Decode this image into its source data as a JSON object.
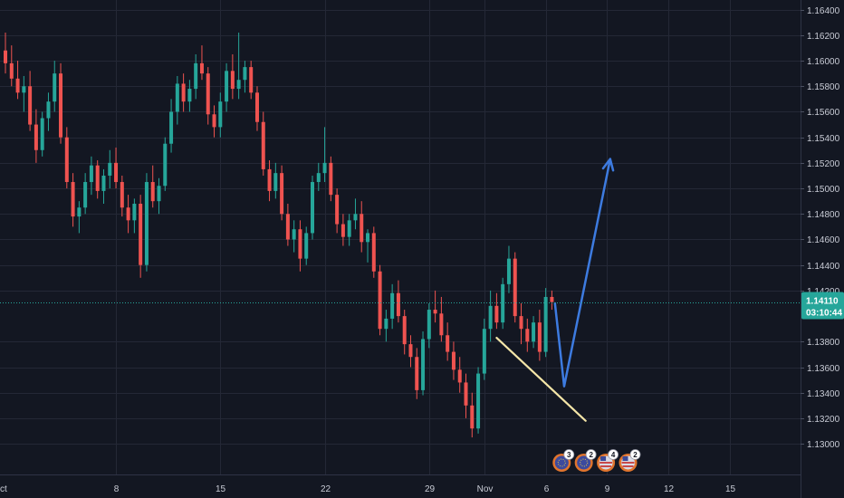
{
  "chart_data": {
    "type": "candlestick",
    "x_axis": {
      "tick_labels": [
        "ct",
        "8",
        "15",
        "22",
        "29",
        "Nov",
        "6",
        "9",
        "12",
        "15"
      ],
      "ticks": [
        {
          "label": "ct",
          "index": 0
        },
        {
          "label": "8",
          "index": 18
        },
        {
          "label": "15",
          "index": 35
        },
        {
          "label": "22",
          "index": 52
        },
        {
          "label": "29",
          "index": 69
        },
        {
          "label": "Nov",
          "index": 78
        },
        {
          "label": "6",
          "index": 88
        },
        {
          "label": "9",
          "index": 98
        },
        {
          "label": "12",
          "index": 108
        },
        {
          "label": "15",
          "index": 118
        }
      ]
    },
    "y_axis": {
      "range": [
        1.1293,
        1.1644
      ],
      "tick_labels": [
        "1.16400",
        "1.16200",
        "1.16000",
        "1.15800",
        "1.15600",
        "1.15400",
        "1.15200",
        "1.15000",
        "1.14800",
        "1.14600",
        "1.14400",
        "1.14200",
        "1.13800",
        "1.13600",
        "1.13400",
        "1.13200",
        "1.13000"
      ]
    },
    "last_price": {
      "value": 1.1411,
      "label": "1.14110",
      "countdown": "03:10:44"
    },
    "series": [
      {
        "ohlc": [
          [
            1.1608,
            1.1622,
            1.159,
            1.1598
          ],
          [
            1.1598,
            1.1612,
            1.158,
            1.1586
          ],
          [
            1.1586,
            1.16,
            1.157,
            1.1575
          ],
          [
            1.1575,
            1.1588,
            1.156,
            1.158
          ],
          [
            1.158,
            1.1592,
            1.1545,
            1.155
          ],
          [
            1.155,
            1.1562,
            1.152,
            1.153
          ],
          [
            1.153,
            1.156,
            1.1525,
            1.1555
          ],
          [
            1.1555,
            1.1575,
            1.1545,
            1.1568
          ],
          [
            1.1568,
            1.16,
            1.156,
            1.159
          ],
          [
            1.159,
            1.1598,
            1.1535,
            1.154
          ],
          [
            1.154,
            1.1548,
            1.15,
            1.1505
          ],
          [
            1.1505,
            1.1512,
            1.147,
            1.1478
          ],
          [
            1.1478,
            1.149,
            1.1465,
            1.1485
          ],
          [
            1.1485,
            1.1512,
            1.148,
            1.1505
          ],
          [
            1.1505,
            1.1525,
            1.1495,
            1.1518
          ],
          [
            1.1518,
            1.1522,
            1.1492,
            1.1498
          ],
          [
            1.1498,
            1.1515,
            1.1488,
            1.151
          ],
          [
            1.151,
            1.153,
            1.15,
            1.152
          ],
          [
            1.152,
            1.1532,
            1.15,
            1.1505
          ],
          [
            1.1505,
            1.151,
            1.1478,
            1.1485
          ],
          [
            1.1485,
            1.1495,
            1.1465,
            1.1475
          ],
          [
            1.1475,
            1.1492,
            1.1465,
            1.1488
          ],
          [
            1.1488,
            1.1495,
            1.143,
            1.144
          ],
          [
            1.144,
            1.1512,
            1.1435,
            1.1505
          ],
          [
            1.1505,
            1.1518,
            1.1485,
            1.149
          ],
          [
            1.149,
            1.1508,
            1.148,
            1.1502
          ],
          [
            1.1502,
            1.154,
            1.1498,
            1.1535
          ],
          [
            1.1535,
            1.157,
            1.1528,
            1.156
          ],
          [
            1.156,
            1.1588,
            1.155,
            1.1582
          ],
          [
            1.1582,
            1.159,
            1.156,
            1.1568
          ],
          [
            1.1568,
            1.1585,
            1.156,
            1.1578
          ],
          [
            1.1578,
            1.1605,
            1.157,
            1.1598
          ],
          [
            1.1598,
            1.1612,
            1.1585,
            1.159
          ],
          [
            1.159,
            1.1595,
            1.155,
            1.1558
          ],
          [
            1.1558,
            1.1565,
            1.154,
            1.1548
          ],
          [
            1.1548,
            1.1575,
            1.154,
            1.1568
          ],
          [
            1.1568,
            1.1598,
            1.156,
            1.1592
          ],
          [
            1.1592,
            1.1605,
            1.157,
            1.1578
          ],
          [
            1.1578,
            1.1622,
            1.157,
            1.1585
          ],
          [
            1.1585,
            1.16,
            1.1575,
            1.1595
          ],
          [
            1.1595,
            1.16,
            1.157,
            1.1575
          ],
          [
            1.1575,
            1.158,
            1.1545,
            1.1552
          ],
          [
            1.1552,
            1.156,
            1.151,
            1.1515
          ],
          [
            1.1515,
            1.1522,
            1.149,
            1.1498
          ],
          [
            1.1498,
            1.152,
            1.1492,
            1.1512
          ],
          [
            1.1512,
            1.1518,
            1.1475,
            1.148
          ],
          [
            1.148,
            1.1488,
            1.1455,
            1.146
          ],
          [
            1.146,
            1.1475,
            1.145,
            1.1468
          ],
          [
            1.1468,
            1.1475,
            1.1435,
            1.1445
          ],
          [
            1.1445,
            1.147,
            1.144,
            1.1465
          ],
          [
            1.1465,
            1.151,
            1.146,
            1.1505
          ],
          [
            1.1505,
            1.152,
            1.1498,
            1.1512
          ],
          [
            1.1512,
            1.1548,
            1.1505,
            1.152
          ],
          [
            1.152,
            1.1525,
            1.149,
            1.1495
          ],
          [
            1.1495,
            1.15,
            1.1465,
            1.1472
          ],
          [
            1.1472,
            1.148,
            1.1455,
            1.1462
          ],
          [
            1.1462,
            1.148,
            1.1455,
            1.1475
          ],
          [
            1.1475,
            1.1492,
            1.1468,
            1.148
          ],
          [
            1.148,
            1.149,
            1.145,
            1.1458
          ],
          [
            1.1458,
            1.1468,
            1.1442,
            1.1465
          ],
          [
            1.1465,
            1.147,
            1.143,
            1.1435
          ],
          [
            1.1435,
            1.144,
            1.1385,
            1.139
          ],
          [
            1.139,
            1.1405,
            1.138,
            1.1398
          ],
          [
            1.1398,
            1.1425,
            1.139,
            1.1418
          ],
          [
            1.1418,
            1.1428,
            1.1395,
            1.14
          ],
          [
            1.14,
            1.1405,
            1.137,
            1.1378
          ],
          [
            1.1378,
            1.1385,
            1.136,
            1.1368
          ],
          [
            1.1368,
            1.1375,
            1.1335,
            1.1342
          ],
          [
            1.1342,
            1.1388,
            1.1338,
            1.1382
          ],
          [
            1.1382,
            1.141,
            1.1375,
            1.1405
          ],
          [
            1.1405,
            1.142,
            1.1395,
            1.1402
          ],
          [
            1.1402,
            1.1415,
            1.138,
            1.1385
          ],
          [
            1.1385,
            1.1395,
            1.1365,
            1.1372
          ],
          [
            1.1372,
            1.138,
            1.135,
            1.1358
          ],
          [
            1.1358,
            1.1368,
            1.134,
            1.1348
          ],
          [
            1.1348,
            1.1355,
            1.132,
            1.133
          ],
          [
            1.133,
            1.134,
            1.1305,
            1.1312
          ],
          [
            1.1312,
            1.136,
            1.1308,
            1.1355
          ],
          [
            1.1355,
            1.1398,
            1.135,
            1.139
          ],
          [
            1.139,
            1.142,
            1.138,
            1.1408
          ],
          [
            1.1408,
            1.1418,
            1.139,
            1.1395
          ],
          [
            1.1395,
            1.143,
            1.139,
            1.1425
          ],
          [
            1.1425,
            1.1455,
            1.1418,
            1.1445
          ],
          [
            1.1445,
            1.145,
            1.1395,
            1.14
          ],
          [
            1.14,
            1.141,
            1.1378,
            1.139
          ],
          [
            1.139,
            1.1398,
            1.1372,
            1.138
          ],
          [
            1.138,
            1.14,
            1.1375,
            1.1395
          ],
          [
            1.1395,
            1.1405,
            1.1365,
            1.1372
          ],
          [
            1.1372,
            1.1422,
            1.1368,
            1.1415
          ],
          [
            1.1415,
            1.142,
            1.1405,
            1.1411
          ]
        ]
      }
    ],
    "colors": {
      "up": "#26a69a",
      "down": "#ef5350",
      "background": "#131722",
      "grid": "#242836",
      "axis_text": "#c9ccd6"
    },
    "annotations": {
      "support_line": {
        "color": "#f5e6a8",
        "from": {
          "index": 80,
          "price": 1.1383
        },
        "to": {
          "index": 94.5,
          "price": 1.1318
        }
      },
      "projection_arrow": {
        "color": "#3d7be0",
        "points": [
          {
            "index": 89.5,
            "price": 1.141
          },
          {
            "index": 91,
            "price": 1.1345
          },
          {
            "index": 98.5,
            "price": 1.1523
          }
        ]
      }
    },
    "event_badges": [
      {
        "icon": "eu-flag-icon",
        "count": "3",
        "index": 90.6
      },
      {
        "icon": "eu-flag-icon",
        "count": "2",
        "index": 94.2
      },
      {
        "icon": "us-flag-icon",
        "count": "4",
        "index": 97.8
      },
      {
        "icon": "us-flag-icon",
        "count": "2",
        "index": 101.4
      }
    ]
  }
}
